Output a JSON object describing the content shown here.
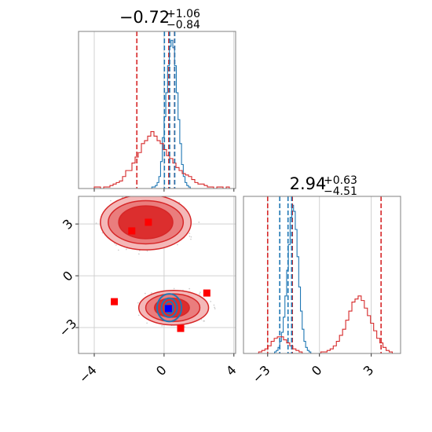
{
  "colors": {
    "blue": "#1f77b4",
    "red": "#d62728",
    "red_fill_outer": "#f4b8b8",
    "red_fill_mid": "#ea7d7d",
    "red_fill_inner": "#dc2e2e",
    "marker_red": "#ff0000",
    "marker_blue": "#0000ff",
    "grid": "#d0d0d0",
    "axis": "#808080"
  },
  "chart_data": [
    {
      "type": "histogram",
      "panel": "top-left",
      "title": {
        "value": "−0.72",
        "upper": "+1.06",
        "lower": "−0.84"
      },
      "xlim": [
        -4.9,
        4.1
      ],
      "xticks": [
        -4,
        0,
        4
      ],
      "grid": true,
      "series": [
        {
          "color": "#1f77b4",
          "bin_start": -1.0,
          "bin_width": 0.1,
          "counts": [
            0,
            0,
            0,
            1,
            1,
            2,
            4,
            8,
            18,
            34,
            48,
            64,
            82,
            95,
            99,
            94,
            82,
            64,
            46,
            30,
            16,
            8,
            4,
            2,
            1,
            0,
            0
          ]
        },
        {
          "color": "#d62728",
          "bin_start": -4.0,
          "bin_width": 0.18,
          "counts": [
            1,
            1,
            0,
            1,
            1,
            2,
            3,
            4,
            5,
            8,
            12,
            12,
            17,
            21,
            24,
            30,
            32,
            35,
            38,
            35,
            32,
            30,
            26,
            22,
            20,
            17,
            14,
            12,
            10,
            9,
            8,
            6,
            4,
            3,
            3,
            2,
            1,
            1,
            0,
            1,
            1,
            0,
            1,
            0,
            0,
            0,
            0,
            0,
            0
          ]
        }
      ],
      "vlines": [
        {
          "x": -1.56,
          "color": "#d62728"
        },
        {
          "x": 0.27,
          "color": "#d62728"
        },
        {
          "x": 0.6,
          "color": "#d62728"
        },
        {
          "x": 0.02,
          "color": "#1f77b4"
        },
        {
          "x": 0.32,
          "color": "#1f77b4"
        },
        {
          "x": 0.61,
          "color": "#1f77b4"
        }
      ]
    },
    {
      "type": "contour",
      "panel": "bottom-left",
      "xlim": [
        -4.9,
        4.1
      ],
      "ylim": [
        -4.5,
        4.6
      ],
      "xticks": [
        -4,
        0,
        4
      ],
      "yticks": [
        -3,
        0,
        3
      ],
      "grid": true,
      "red_levels": [
        {
          "level": "outer",
          "modes": [
            {
              "cx": -1.05,
              "cy": 3.1,
              "rx": 2.6,
              "ry": 1.6
            },
            {
              "cx": 0.55,
              "cy": -1.85,
              "rx": 2.0,
              "ry": 1.0
            }
          ]
        },
        {
          "level": "middle",
          "modes": [
            {
              "cx": -1.05,
              "cy": 3.1,
              "rx": 2.15,
              "ry": 1.25
            },
            {
              "cx": 0.5,
              "cy": -1.85,
              "rx": 1.55,
              "ry": 0.8
            }
          ]
        },
        {
          "level": "inner",
          "modes": [
            {
              "cx": -1.05,
              "cy": 3.1,
              "rx": 1.55,
              "ry": 0.95
            },
            {
              "cx": 0.45,
              "cy": -1.85,
              "rx": 1.0,
              "ry": 0.55
            }
          ]
        }
      ],
      "blue_levels": [
        {
          "cx": 0.3,
          "cy": -1.85,
          "rx": 0.7,
          "ry": 0.8
        },
        {
          "cx": 0.3,
          "cy": -1.85,
          "rx": 0.45,
          "ry": 0.55
        },
        {
          "cx": 0.3,
          "cy": -1.85,
          "rx": 0.25,
          "ry": 0.35
        }
      ],
      "red_markers": [
        {
          "x": -1.85,
          "y": 2.6
        },
        {
          "x": -0.9,
          "y": 3.1
        },
        {
          "x": -2.85,
          "y": -1.5
        },
        {
          "x": 2.45,
          "y": -1.0
        },
        {
          "x": 0.95,
          "y": -3.05
        }
      ],
      "blue_markers": [
        {
          "x": 0.25,
          "y": -1.9
        }
      ]
    },
    {
      "type": "histogram",
      "panel": "bottom-right",
      "title": {
        "value": "2.94",
        "upper": "+0.63",
        "lower": "−4.51"
      },
      "xlim": [
        -4.4,
        4.7
      ],
      "xticks": [
        -3,
        0,
        3
      ],
      "grid": true,
      "series": [
        {
          "color": "#1f77b4",
          "bin_start": -2.8,
          "bin_width": 0.1,
          "counts": [
            0,
            0,
            1,
            2,
            4,
            8,
            14,
            24,
            38,
            55,
            72,
            90,
            98,
            94,
            82,
            64,
            44,
            28,
            16,
            8,
            4,
            2,
            1,
            0,
            0
          ]
        },
        {
          "color": "#d62728",
          "bin_start": -3.7,
          "bin_width": 0.18,
          "counts": [
            0,
            1,
            2,
            3,
            5,
            8,
            10,
            11,
            11,
            9,
            7,
            5,
            3,
            2,
            1,
            0,
            0,
            0,
            0,
            0,
            0,
            1,
            1,
            2,
            3,
            5,
            8,
            12,
            16,
            22,
            28,
            34,
            36,
            38,
            35,
            30,
            25,
            20,
            15,
            10,
            7,
            4,
            2,
            1,
            0
          ]
        }
      ],
      "vlines": [
        {
          "x": -3.0,
          "color": "#d62728"
        },
        {
          "x": -1.57,
          "color": "#d62728"
        },
        {
          "x": 3.57,
          "color": "#d62728"
        },
        {
          "x": -2.3,
          "color": "#1f77b4"
        },
        {
          "x": -1.82,
          "color": "#1f77b4"
        },
        {
          "x": -1.61,
          "color": "#1f77b4"
        }
      ]
    }
  ]
}
